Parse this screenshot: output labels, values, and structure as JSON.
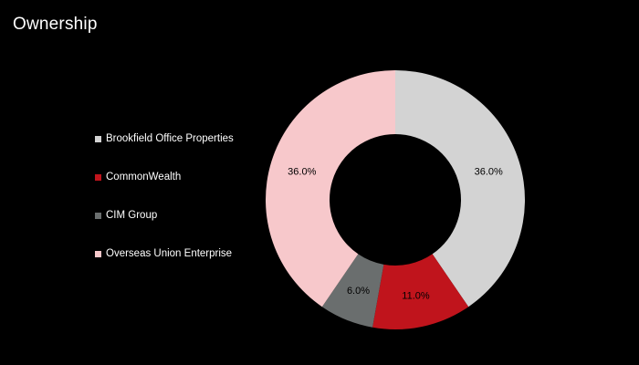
{
  "header": {
    "title": "Ownership"
  },
  "chart_data": {
    "type": "pie",
    "variant": "donut",
    "title": "",
    "legend_position": "left",
    "start": "top",
    "direction": "clockwise",
    "series": [
      {
        "name": "Brookfield Office Properties",
        "value": 36.0,
        "label": "36.0%",
        "color": "#d3d3d3"
      },
      {
        "name": "CommonWealth",
        "value": 11.0,
        "label": "11.0%",
        "color": "#c0141c"
      },
      {
        "name": "CIM Group",
        "value": 6.0,
        "label": "6.0%",
        "color": "#6a6e6e"
      },
      {
        "name": "Overseas Union Enterprise",
        "value": 36.0,
        "label": "36.0%",
        "color": "#f7c8cb"
      }
    ]
  }
}
